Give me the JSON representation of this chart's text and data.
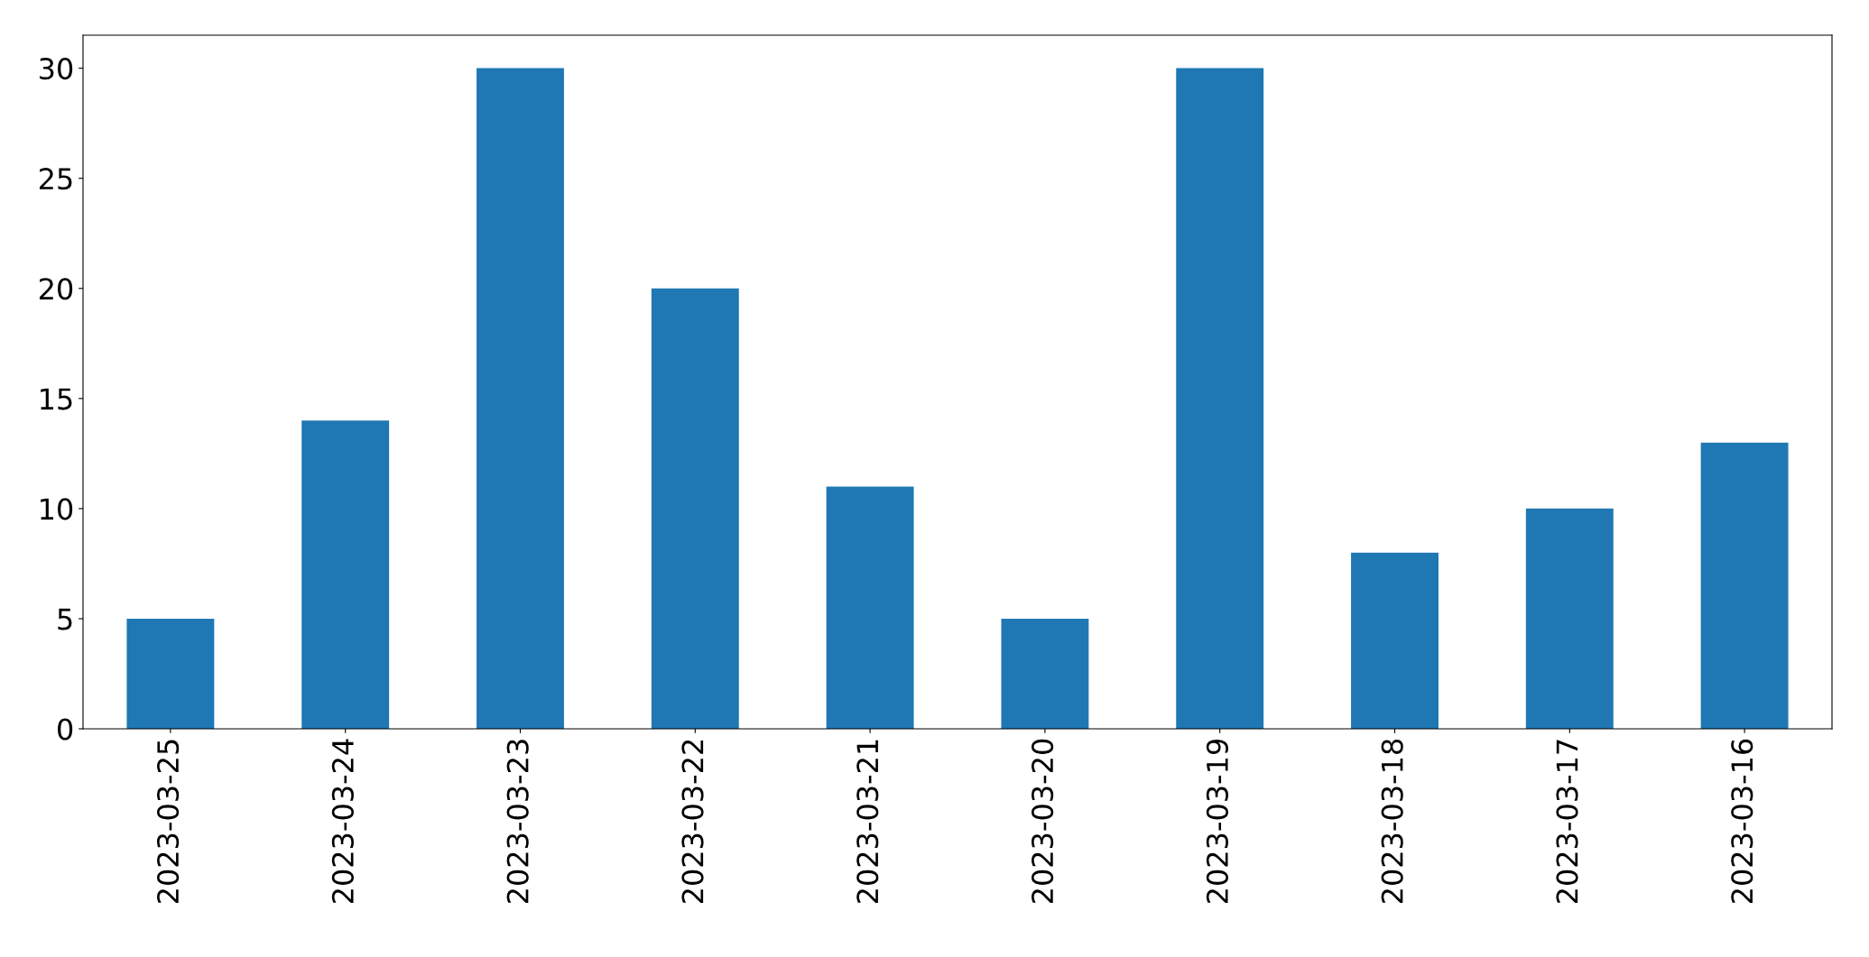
{
  "chart_data": {
    "type": "bar",
    "categories": [
      "2023-03-25",
      "2023-03-24",
      "2023-03-23",
      "2023-03-22",
      "2023-03-21",
      "2023-03-20",
      "2023-03-19",
      "2023-03-18",
      "2023-03-17",
      "2023-03-16"
    ],
    "values": [
      5,
      14,
      30,
      20,
      11,
      5,
      30,
      8,
      10,
      13
    ],
    "color": "#1f77b4",
    "ylim": [
      0,
      31.5
    ],
    "yticks": [
      0,
      5,
      10,
      15,
      20,
      25,
      30
    ],
    "grid": false,
    "legend": false
  }
}
